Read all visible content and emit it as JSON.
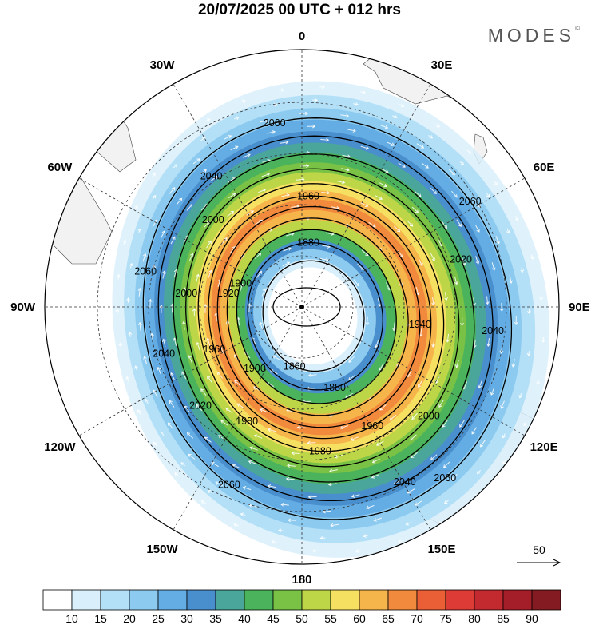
{
  "header": {
    "title": "20/07/2025  00 UTC  + 012 hrs",
    "brand": "MODES"
  },
  "longitude_labels": [
    {
      "name": "lon-0",
      "text": "0",
      "lon": 0
    },
    {
      "name": "lon-30e",
      "text": "30E",
      "lon": 30
    },
    {
      "name": "lon-60e",
      "text": "60E",
      "lon": 60
    },
    {
      "name": "lon-90e",
      "text": "90E",
      "lon": 90
    },
    {
      "name": "lon-120e",
      "text": "120E",
      "lon": 120
    },
    {
      "name": "lon-150e",
      "text": "150E",
      "lon": 150
    },
    {
      "name": "lon-180",
      "text": "180",
      "lon": 180
    },
    {
      "name": "lon-150w",
      "text": "150W",
      "lon": -150
    },
    {
      "name": "lon-120w",
      "text": "120W",
      "lon": -120
    },
    {
      "name": "lon-90w",
      "text": "90W",
      "lon": -90
    },
    {
      "name": "lon-60w",
      "text": "60W",
      "lon": -60
    },
    {
      "name": "lon-30w",
      "text": "30W",
      "lon": -30
    }
  ],
  "contour_labels": [
    {
      "text": "2060",
      "ring": 2060,
      "lon": -10
    },
    {
      "text": "2040",
      "ring": 2040,
      "lon": -35
    },
    {
      "text": "1960",
      "ring": 1960,
      "lon": 0
    },
    {
      "text": "2000",
      "ring": 2000,
      "lon": -45
    },
    {
      "text": "1880",
      "ring": 1880,
      "lon": 0
    },
    {
      "text": "1900",
      "ring": 1900,
      "lon": -65
    },
    {
      "text": "1920",
      "ring": 1920,
      "lon": -75
    },
    {
      "text": "2060",
      "ring": 2060,
      "lon": 55
    },
    {
      "text": "2020",
      "ring": 2020,
      "lon": 70
    },
    {
      "text": "2040",
      "ring": 2040,
      "lon": 95
    },
    {
      "text": "1940",
      "ring": 1940,
      "lon": 95
    },
    {
      "text": "2000",
      "ring": 2000,
      "lon": 130
    },
    {
      "text": "1960",
      "ring": 1960,
      "lon": 150
    },
    {
      "text": "1980",
      "ring": 1980,
      "lon": 175
    },
    {
      "text": "1980",
      "ring": 1980,
      "lon": -150
    },
    {
      "text": "1880",
      "ring": 1880,
      "lon": 160
    },
    {
      "text": "1860",
      "ring": 1860,
      "lon": -165
    },
    {
      "text": "1900",
      "ring": 1900,
      "lon": -135
    },
    {
      "text": "1960",
      "ring": 1960,
      "lon": -110
    },
    {
      "text": "2020",
      "ring": 2020,
      "lon": -130
    },
    {
      "text": "2040",
      "ring": 2040,
      "lon": 150
    },
    {
      "text": "2060",
      "ring": 2060,
      "lon": 140
    },
    {
      "text": "2060",
      "ring": 2060,
      "lon": -155
    },
    {
      "text": "2040",
      "ring": 2040,
      "lon": -105
    },
    {
      "text": "2060",
      "ring": 2060,
      "lon": -75
    },
    {
      "text": "2000",
      "ring": 2000,
      "lon": -80
    }
  ],
  "reference_vector": {
    "label": "50"
  },
  "colorbar": {
    "ticks": [
      "10",
      "15",
      "20",
      "25",
      "30",
      "35",
      "40",
      "45",
      "50",
      "55",
      "60",
      "65",
      "70",
      "75",
      "80",
      "85",
      "90"
    ],
    "colors": [
      "#ffffff",
      "#d9f0fc",
      "#b3e0f7",
      "#8ccaf0",
      "#64ade4",
      "#4a8fcd",
      "#4aa69a",
      "#4bb35c",
      "#79c245",
      "#bdd648",
      "#f6e062",
      "#f6b54a",
      "#f18a3c",
      "#ea5f36",
      "#dd3b35",
      "#c22a30",
      "#a31e28",
      "#841b22"
    ]
  },
  "colors": {
    "land": "#f2f2f2",
    "graticule": "#333333",
    "contour": "#000000",
    "vector": "#ffffff"
  }
}
